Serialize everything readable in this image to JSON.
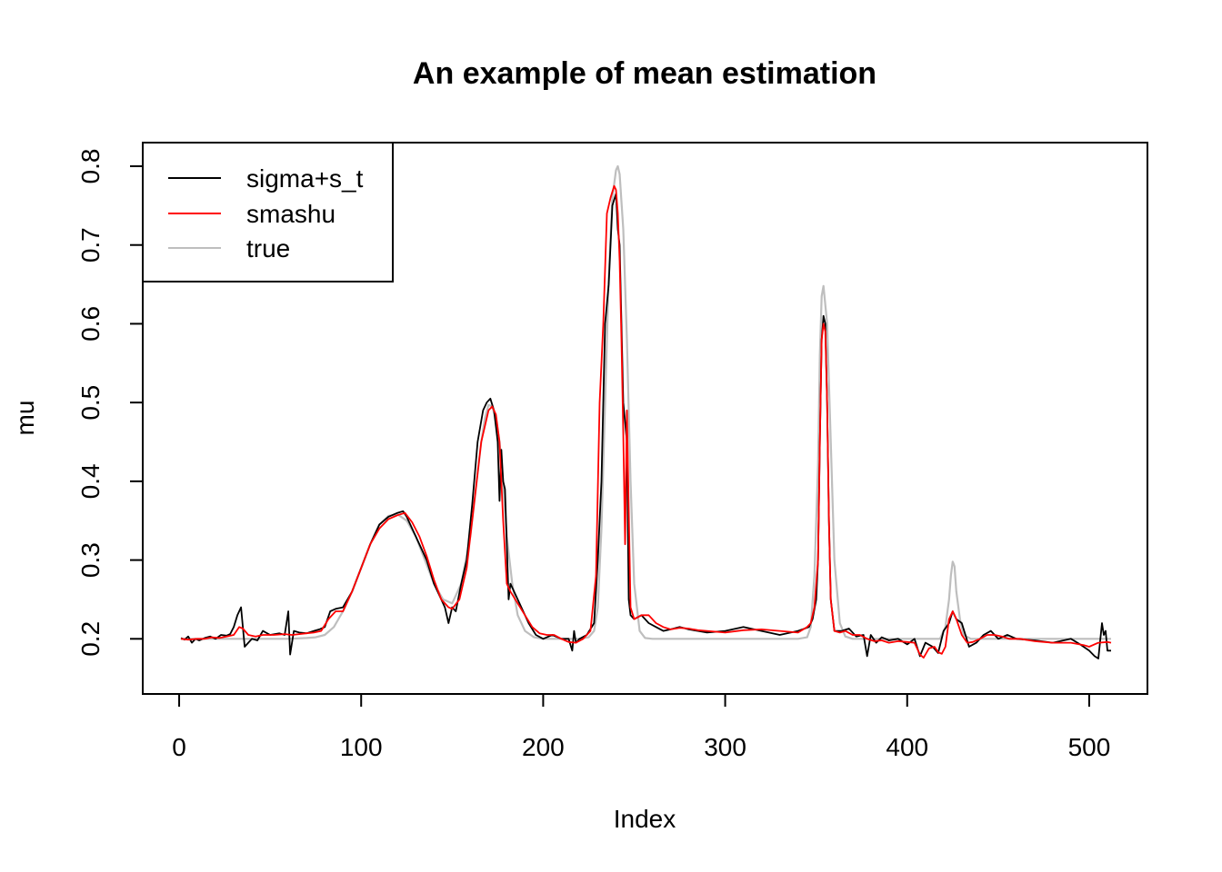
{
  "chart_data": {
    "type": "line",
    "title": "An example of mean estimation",
    "xlabel": "Index",
    "ylabel": "mu",
    "xlim": [
      -20,
      532
    ],
    "ylim": [
      0.13,
      0.83
    ],
    "xticks": [
      0,
      100,
      200,
      300,
      400,
      500
    ],
    "yticks": [
      0.2,
      0.3,
      0.4,
      0.5,
      0.6,
      0.7,
      0.8
    ],
    "grid": false,
    "legend": "top-left",
    "series": [
      {
        "name": "sigma+s_t",
        "color": "#000000",
        "x": [
          1,
          3,
          5,
          7,
          9,
          11,
          14,
          17,
          20,
          23,
          26,
          28,
          30,
          32,
          34,
          36,
          38,
          40,
          43,
          46,
          50,
          55,
          58,
          60,
          61,
          63,
          66,
          70,
          74,
          77,
          80,
          83,
          86,
          90,
          95,
          100,
          105,
          110,
          115,
          120,
          123,
          125,
          128,
          132,
          136,
          140,
          144,
          146,
          148,
          150,
          152,
          155,
          158,
          161,
          164,
          167,
          169,
          171,
          173,
          174,
          175,
          176,
          177,
          178,
          179,
          180,
          181,
          182,
          184,
          188,
          192,
          196,
          200,
          205,
          210,
          214,
          216,
          217,
          218,
          220,
          224,
          228,
          230,
          232,
          234,
          236,
          238,
          240,
          241,
          242,
          244,
          246,
          247,
          248,
          250,
          254,
          258,
          262,
          266,
          270,
          275,
          280,
          285,
          290,
          300,
          310,
          320,
          330,
          340,
          346,
          348,
          350,
          351,
          352,
          353,
          354,
          355,
          356,
          357,
          358,
          360,
          364,
          368,
          372,
          376,
          378,
          380,
          383,
          386,
          390,
          395,
          400,
          404,
          407,
          410,
          414,
          417,
          420,
          423,
          425,
          427,
          430,
          434,
          438,
          442,
          446,
          450,
          455,
          460,
          470,
          480,
          490,
          495,
          500,
          503,
          505,
          507,
          508,
          509,
          510,
          512
        ],
        "values": [
          0.201,
          0.199,
          0.203,
          0.195,
          0.2,
          0.198,
          0.201,
          0.203,
          0.2,
          0.205,
          0.204,
          0.206,
          0.215,
          0.23,
          0.24,
          0.19,
          0.195,
          0.2,
          0.198,
          0.21,
          0.205,
          0.207,
          0.205,
          0.235,
          0.18,
          0.21,
          0.208,
          0.207,
          0.21,
          0.212,
          0.215,
          0.235,
          0.238,
          0.24,
          0.26,
          0.29,
          0.32,
          0.345,
          0.355,
          0.36,
          0.362,
          0.355,
          0.34,
          0.32,
          0.3,
          0.27,
          0.25,
          0.24,
          0.22,
          0.24,
          0.235,
          0.27,
          0.3,
          0.37,
          0.45,
          0.49,
          0.5,
          0.505,
          0.49,
          0.47,
          0.45,
          0.375,
          0.44,
          0.4,
          0.39,
          0.32,
          0.25,
          0.27,
          0.26,
          0.24,
          0.22,
          0.205,
          0.2,
          0.205,
          0.2,
          0.2,
          0.185,
          0.21,
          0.195,
          0.2,
          0.205,
          0.22,
          0.3,
          0.4,
          0.6,
          0.65,
          0.75,
          0.765,
          0.72,
          0.7,
          0.5,
          0.45,
          0.25,
          0.23,
          0.225,
          0.23,
          0.22,
          0.215,
          0.21,
          0.212,
          0.215,
          0.212,
          0.21,
          0.208,
          0.21,
          0.215,
          0.21,
          0.205,
          0.21,
          0.215,
          0.225,
          0.25,
          0.3,
          0.45,
          0.58,
          0.61,
          0.6,
          0.5,
          0.35,
          0.25,
          0.21,
          0.21,
          0.213,
          0.203,
          0.205,
          0.178,
          0.205,
          0.195,
          0.202,
          0.198,
          0.2,
          0.193,
          0.2,
          0.178,
          0.195,
          0.19,
          0.182,
          0.21,
          0.22,
          0.235,
          0.225,
          0.22,
          0.19,
          0.195,
          0.205,
          0.21,
          0.2,
          0.205,
          0.2,
          0.198,
          0.195,
          0.2,
          0.193,
          0.185,
          0.178,
          0.175,
          0.22,
          0.205,
          0.21,
          0.185,
          0.185
        ]
      },
      {
        "name": "smashu",
        "color": "#ff0000",
        "x": [
          1,
          5,
          10,
          14,
          18,
          22,
          26,
          30,
          33,
          35,
          38,
          42,
          46,
          52,
          58,
          62,
          66,
          70,
          74,
          78,
          82,
          86,
          90,
          95,
          100,
          105,
          110,
          115,
          120,
          124,
          128,
          132,
          136,
          140,
          144,
          148,
          150,
          154,
          158,
          162,
          166,
          170,
          172,
          174,
          176,
          178,
          180,
          182,
          186,
          190,
          194,
          198,
          202,
          206,
          210,
          214,
          218,
          222,
          226,
          229,
          231,
          233,
          235,
          237,
          239,
          240,
          241,
          242,
          243,
          244,
          245,
          246,
          248,
          250,
          254,
          258,
          262,
          266,
          270,
          275,
          280,
          285,
          290,
          300,
          310,
          320,
          330,
          340,
          345,
          347,
          349,
          351,
          352,
          353,
          354,
          355,
          356,
          357,
          358,
          360,
          363,
          366,
          370,
          374,
          378,
          382,
          386,
          390,
          395,
          400,
          404,
          407,
          409,
          412,
          415,
          417,
          419,
          421,
          423,
          425,
          427,
          430,
          433,
          436,
          440,
          444,
          448,
          452,
          456,
          462,
          470,
          480,
          490,
          497,
          500,
          505,
          510,
          512
        ],
        "values": [
          0.2,
          0.199,
          0.2,
          0.2,
          0.202,
          0.201,
          0.203,
          0.205,
          0.215,
          0.213,
          0.205,
          0.203,
          0.205,
          0.205,
          0.206,
          0.205,
          0.206,
          0.207,
          0.208,
          0.21,
          0.225,
          0.235,
          0.235,
          0.26,
          0.29,
          0.32,
          0.34,
          0.352,
          0.357,
          0.36,
          0.348,
          0.33,
          0.305,
          0.275,
          0.25,
          0.24,
          0.238,
          0.25,
          0.29,
          0.37,
          0.45,
          0.49,
          0.495,
          0.485,
          0.45,
          0.35,
          0.27,
          0.26,
          0.245,
          0.23,
          0.215,
          0.207,
          0.205,
          0.205,
          0.2,
          0.196,
          0.195,
          0.2,
          0.21,
          0.28,
          0.5,
          0.6,
          0.74,
          0.76,
          0.775,
          0.77,
          0.74,
          0.68,
          0.58,
          0.46,
          0.32,
          0.49,
          0.24,
          0.225,
          0.23,
          0.23,
          0.22,
          0.215,
          0.212,
          0.214,
          0.213,
          0.211,
          0.21,
          0.208,
          0.211,
          0.212,
          0.21,
          0.208,
          0.215,
          0.22,
          0.24,
          0.3,
          0.45,
          0.58,
          0.6,
          0.59,
          0.5,
          0.35,
          0.25,
          0.21,
          0.208,
          0.21,
          0.205,
          0.205,
          0.2,
          0.197,
          0.198,
          0.195,
          0.197,
          0.196,
          0.195,
          0.18,
          0.176,
          0.188,
          0.19,
          0.183,
          0.181,
          0.19,
          0.225,
          0.235,
          0.225,
          0.205,
          0.195,
          0.196,
          0.2,
          0.205,
          0.205,
          0.203,
          0.2,
          0.2,
          0.197,
          0.195,
          0.195,
          0.192,
          0.19,
          0.195,
          0.196,
          0.195
        ]
      },
      {
        "name": "true",
        "color": "#bebebe",
        "x": [
          1,
          30,
          60,
          70,
          75,
          80,
          85,
          90,
          95,
          100,
          105,
          110,
          115,
          120,
          125,
          130,
          135,
          140,
          145,
          150,
          155,
          160,
          163,
          166,
          168,
          170,
          172,
          174,
          176,
          178,
          180,
          183,
          186,
          190,
          195,
          200,
          205,
          210,
          220,
          225,
          228,
          230,
          232,
          234,
          236,
          238,
          240,
          241,
          242,
          244,
          246,
          248,
          250,
          253,
          256,
          260,
          280,
          300,
          320,
          340,
          345,
          347,
          349,
          351,
          352,
          353,
          354,
          356,
          358,
          360,
          363,
          366,
          370,
          400,
          418,
          421,
          423,
          424,
          425,
          426,
          427,
          429,
          431,
          435,
          450,
          480,
          512
        ],
        "values": [
          0.2,
          0.2,
          0.2,
          0.201,
          0.202,
          0.205,
          0.215,
          0.235,
          0.26,
          0.29,
          0.32,
          0.345,
          0.356,
          0.358,
          0.35,
          0.33,
          0.3,
          0.27,
          0.25,
          0.245,
          0.27,
          0.33,
          0.39,
          0.45,
          0.48,
          0.497,
          0.495,
          0.48,
          0.45,
          0.4,
          0.33,
          0.27,
          0.23,
          0.21,
          0.202,
          0.2,
          0.2,
          0.2,
          0.2,
          0.202,
          0.21,
          0.24,
          0.34,
          0.5,
          0.66,
          0.76,
          0.795,
          0.8,
          0.79,
          0.72,
          0.58,
          0.4,
          0.27,
          0.21,
          0.201,
          0.2,
          0.2,
          0.2,
          0.2,
          0.2,
          0.202,
          0.215,
          0.28,
          0.42,
          0.56,
          0.635,
          0.648,
          0.6,
          0.45,
          0.3,
          0.22,
          0.203,
          0.2,
          0.2,
          0.2,
          0.215,
          0.25,
          0.28,
          0.298,
          0.292,
          0.26,
          0.225,
          0.205,
          0.2,
          0.2,
          0.2,
          0.2
        ]
      }
    ]
  }
}
